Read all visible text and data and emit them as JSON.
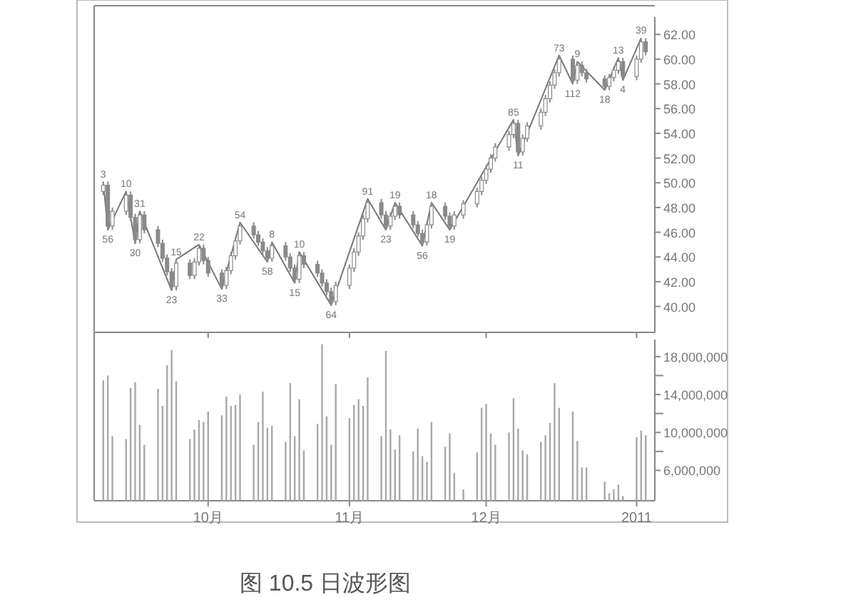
{
  "chart_data": [
    {
      "type": "candlestick",
      "color": "#8a8a8a",
      "tick_labels": "y",
      "x": [
        "2010-09-08",
        "2010-09-09",
        "2010-09-10",
        "2010-09-13",
        "2010-09-14",
        "2010-09-15",
        "2010-09-16",
        "2010-09-17",
        "2010-09-20",
        "2010-09-21",
        "2010-09-22",
        "2010-09-23",
        "2010-09-24",
        "2010-09-27",
        "2010-09-28",
        "2010-09-29",
        "2010-09-30",
        "2010-10-01",
        "2010-10-04",
        "2010-10-05",
        "2010-10-06",
        "2010-10-07",
        "2010-10-08",
        "2010-10-11",
        "2010-10-12",
        "2010-10-13",
        "2010-10-14",
        "2010-10-15",
        "2010-10-18",
        "2010-10-19",
        "2010-10-20",
        "2010-10-21",
        "2010-10-22",
        "2010-10-25",
        "2010-10-26",
        "2010-10-27",
        "2010-10-28",
        "2010-10-29",
        "2010-11-01",
        "2010-11-02",
        "2010-11-03",
        "2010-11-04",
        "2010-11-05",
        "2010-11-08",
        "2010-11-09",
        "2010-11-10",
        "2010-11-11",
        "2010-11-12",
        "2010-11-15",
        "2010-11-16",
        "2010-11-17",
        "2010-11-18",
        "2010-11-19",
        "2010-11-22",
        "2010-11-23",
        "2010-11-24",
        "2010-11-26",
        "2010-11-29",
        "2010-11-30",
        "2010-12-01",
        "2010-12-02",
        "2010-12-03",
        "2010-12-06",
        "2010-12-07",
        "2010-12-08",
        "2010-12-09",
        "2010-12-10",
        "2010-12-13",
        "2010-12-14",
        "2010-12-15",
        "2010-12-16",
        "2010-12-17",
        "2010-12-20",
        "2010-12-21",
        "2010-12-22",
        "2010-12-23",
        "2010-12-27",
        "2010-12-28",
        "2010-12-29",
        "2010-12-30",
        "2010-12-31",
        "2011-01-03",
        "2011-01-04",
        "2011-01-05"
      ],
      "ohlc": [
        [
          49.3,
          50.1,
          49.0,
          49.8
        ],
        [
          49.8,
          50.1,
          46.2,
          46.5
        ],
        [
          46.5,
          48.0,
          46.2,
          47.7
        ],
        [
          47.7,
          49.3,
          47.4,
          49.0
        ],
        [
          49.0,
          49.3,
          46.9,
          47.2
        ],
        [
          47.2,
          47.5,
          45.1,
          45.4
        ],
        [
          45.4,
          47.7,
          45.1,
          47.4
        ],
        [
          47.4,
          47.7,
          45.9,
          46.2
        ],
        [
          46.2,
          46.5,
          44.8,
          45.1
        ],
        [
          45.1,
          45.4,
          43.6,
          43.9
        ],
        [
          43.9,
          44.2,
          42.5,
          42.8
        ],
        [
          42.8,
          43.1,
          41.3,
          41.6
        ],
        [
          41.6,
          43.8,
          41.3,
          43.5
        ],
        [
          43.5,
          43.8,
          42.2,
          42.5
        ],
        [
          42.5,
          43.9,
          42.2,
          43.6
        ],
        [
          43.6,
          45.0,
          43.3,
          44.7
        ],
        [
          44.7,
          45.0,
          43.4,
          43.7
        ],
        [
          43.7,
          44.0,
          42.4,
          42.7
        ],
        [
          42.7,
          43.0,
          41.4,
          41.7
        ],
        [
          41.7,
          43.2,
          41.4,
          42.9
        ],
        [
          42.9,
          44.4,
          42.6,
          44.1
        ],
        [
          44.1,
          45.6,
          43.8,
          45.3
        ],
        [
          45.3,
          46.8,
          45.0,
          46.5
        ],
        [
          46.5,
          46.8,
          45.5,
          45.8
        ],
        [
          45.8,
          46.1,
          44.9,
          45.2
        ],
        [
          45.2,
          45.5,
          44.2,
          44.5
        ],
        [
          44.5,
          44.8,
          43.6,
          43.9
        ],
        [
          43.9,
          45.2,
          43.6,
          44.9
        ],
        [
          44.9,
          45.2,
          43.7,
          44.0
        ],
        [
          44.0,
          44.3,
          42.8,
          43.1
        ],
        [
          43.1,
          43.4,
          41.9,
          42.2
        ],
        [
          42.2,
          44.4,
          41.9,
          44.1
        ],
        [
          44.1,
          44.4,
          43.1,
          43.4
        ],
        [
          43.4,
          43.7,
          42.4,
          42.7
        ],
        [
          42.7,
          43.0,
          41.6,
          41.9
        ],
        [
          41.9,
          42.2,
          40.9,
          41.2
        ],
        [
          41.2,
          41.5,
          40.1,
          40.4
        ],
        [
          40.4,
          42.0,
          40.1,
          41.7
        ],
        [
          41.7,
          43.4,
          41.4,
          43.1
        ],
        [
          43.1,
          44.7,
          42.8,
          44.4
        ],
        [
          44.4,
          46.0,
          44.1,
          45.7
        ],
        [
          45.7,
          47.4,
          45.4,
          47.1
        ],
        [
          47.1,
          48.7,
          46.8,
          48.4
        ],
        [
          48.4,
          48.7,
          47.1,
          47.4
        ],
        [
          47.4,
          47.7,
          46.2,
          46.5
        ],
        [
          46.5,
          47.6,
          46.2,
          47.3
        ],
        [
          47.3,
          48.4,
          47.0,
          48.1
        ],
        [
          48.1,
          48.4,
          47.1,
          47.4
        ],
        [
          47.4,
          47.7,
          46.3,
          46.6
        ],
        [
          46.6,
          46.9,
          45.6,
          45.9
        ],
        [
          45.9,
          46.2,
          44.9,
          45.2
        ],
        [
          45.2,
          46.9,
          44.9,
          46.6
        ],
        [
          46.6,
          48.4,
          46.3,
          48.1
        ],
        [
          48.1,
          48.4,
          47.0,
          47.3
        ],
        [
          47.3,
          47.6,
          46.2,
          46.5
        ],
        [
          46.5,
          47.7,
          46.2,
          47.4
        ],
        [
          47.4,
          48.6,
          47.1,
          48.3
        ],
        [
          48.3,
          49.6,
          48.0,
          49.3
        ],
        [
          49.3,
          50.5,
          49.0,
          50.2
        ],
        [
          50.2,
          51.4,
          49.9,
          51.1
        ],
        [
          51.1,
          52.3,
          50.8,
          52.0
        ],
        [
          52.0,
          53.2,
          51.7,
          52.9
        ],
        [
          52.9,
          54.2,
          52.6,
          53.9
        ],
        [
          53.9,
          55.1,
          53.6,
          54.8
        ],
        [
          54.8,
          55.1,
          52.2,
          52.5
        ],
        [
          52.5,
          53.9,
          52.2,
          53.6
        ],
        [
          53.6,
          54.9,
          53.3,
          54.6
        ],
        [
          54.6,
          56.0,
          54.3,
          55.7
        ],
        [
          55.7,
          57.1,
          55.4,
          56.8
        ],
        [
          56.8,
          58.2,
          56.5,
          57.9
        ],
        [
          57.9,
          59.2,
          57.6,
          58.9
        ],
        [
          58.9,
          60.3,
          58.6,
          60.0
        ],
        [
          60.0,
          60.3,
          58.0,
          58.3
        ],
        [
          58.3,
          59.8,
          58.0,
          59.5
        ],
        [
          59.5,
          59.8,
          58.6,
          58.9
        ],
        [
          58.9,
          59.2,
          58.1,
          58.4
        ],
        [
          58.4,
          58.7,
          57.5,
          57.8
        ],
        [
          57.8,
          58.8,
          57.5,
          58.5
        ],
        [
          58.5,
          59.4,
          58.2,
          59.1
        ],
        [
          59.1,
          60.1,
          58.8,
          59.8
        ],
        [
          59.8,
          60.1,
          58.3,
          58.6
        ],
        [
          58.6,
          60.3,
          58.3,
          60.0
        ],
        [
          60.0,
          61.7,
          59.7,
          61.4
        ],
        [
          61.4,
          61.7,
          60.3,
          60.6
        ]
      ],
      "series": [
        {
          "type": "line",
          "color": "#777777",
          "x": [
            "2010-09-08",
            "2010-09-09",
            "2010-09-13",
            "2010-09-15",
            "2010-09-16",
            "2010-09-23",
            "2010-09-24",
            "2010-09-29",
            "2010-10-04",
            "2010-10-08",
            "2010-10-14",
            "2010-10-15",
            "2010-10-20",
            "2010-10-21",
            "2010-10-28",
            "2010-11-05",
            "2010-11-09",
            "2010-11-11",
            "2010-11-17",
            "2010-11-19",
            "2010-11-23",
            "2010-12-07",
            "2010-12-08",
            "2010-12-17",
            "2010-12-20",
            "2010-12-21",
            "2010-12-27",
            "2010-12-30",
            "2010-12-31",
            "2011-01-04"
          ],
          "values": [
            50.1,
            46.2,
            49.3,
            45.1,
            47.7,
            41.3,
            43.8,
            45.0,
            41.4,
            46.8,
            43.6,
            45.2,
            41.9,
            44.4,
            40.1,
            48.7,
            46.2,
            48.4,
            44.9,
            48.4,
            46.2,
            55.1,
            52.2,
            60.3,
            58.0,
            59.8,
            57.5,
            60.1,
            58.3,
            61.7
          ]
        }
      ],
      "annotations": [
        {
          "text": "3",
          "x": "2010-09-08",
          "y": 50.1
        },
        {
          "text": "56",
          "x": "2010-09-09",
          "y": 46.2
        },
        {
          "text": "10",
          "x": "2010-09-13",
          "y": 49.3
        },
        {
          "text": "30",
          "x": "2010-09-15",
          "y": 45.1
        },
        {
          "text": "31",
          "x": "2010-09-16",
          "y": 47.7
        },
        {
          "text": "23",
          "x": "2010-09-23",
          "y": 41.3
        },
        {
          "text": "15",
          "x": "2010-09-24",
          "y": 43.8
        },
        {
          "text": "22",
          "x": "2010-09-29",
          "y": 45.0
        },
        {
          "text": "33",
          "x": "2010-10-04",
          "y": 41.4
        },
        {
          "text": "54",
          "x": "2010-10-08",
          "y": 46.8
        },
        {
          "text": "58",
          "x": "2010-10-14",
          "y": 43.6
        },
        {
          "text": "8",
          "x": "2010-10-15",
          "y": 45.2
        },
        {
          "text": "15",
          "x": "2010-10-20",
          "y": 41.9
        },
        {
          "text": "10",
          "x": "2010-10-21",
          "y": 44.4
        },
        {
          "text": "64",
          "x": "2010-10-28",
          "y": 40.1
        },
        {
          "text": "91",
          "x": "2010-11-05",
          "y": 48.7
        },
        {
          "text": "23",
          "x": "2010-11-09",
          "y": 46.2
        },
        {
          "text": "19",
          "x": "2010-11-11",
          "y": 48.4
        },
        {
          "text": "56",
          "x": "2010-11-17",
          "y": 44.9
        },
        {
          "text": "18",
          "x": "2010-11-19",
          "y": 48.4
        },
        {
          "text": "19",
          "x": "2010-11-23",
          "y": 46.2
        },
        {
          "text": "85",
          "x": "2010-12-07",
          "y": 55.1
        },
        {
          "text": "11",
          "x": "2010-12-08",
          "y": 52.2
        },
        {
          "text": "73",
          "x": "2010-12-17",
          "y": 60.3
        },
        {
          "text": "112",
          "x": "2010-12-20",
          "y": 58.0
        },
        {
          "text": "9",
          "x": "2010-12-21",
          "y": 59.8
        },
        {
          "text": "18",
          "x": "2010-12-27",
          "y": 57.5
        },
        {
          "text": "13",
          "x": "2010-12-30",
          "y": 60.1
        },
        {
          "text": "4",
          "x": "2010-12-31",
          "y": 58.3
        },
        {
          "text": "39",
          "x": "2011-01-04",
          "y": 61.7
        }
      ],
      "xticks": [
        {
          "value": "2010-10-01",
          "label": null
        },
        {
          "value": "2010-11-01",
          "label": null
        },
        {
          "value": "2010-12-01",
          "label": null
        },
        {
          "value": "2011-01-03",
          "label": null
        }
      ],
      "xlim": [
        "2010-09-06",
        "2011-01-07"
      ],
      "ylim": [
        37.9,
        63.4
      ],
      "yticks": [
        {
          "value": 40,
          "label": "40.00"
        },
        {
          "value": 42,
          "label": "42.00"
        },
        {
          "value": 44,
          "label": "44.00"
        },
        {
          "value": 46,
          "label": "46.00"
        },
        {
          "value": 48,
          "label": "48.00"
        },
        {
          "value": 50,
          "label": "50.00"
        },
        {
          "value": 52,
          "label": "52.00"
        },
        {
          "value": 54,
          "label": "54.00"
        },
        {
          "value": 56,
          "label": "56.00"
        },
        {
          "value": 58,
          "label": "58.00"
        },
        {
          "value": 60,
          "label": "60.00"
        },
        {
          "value": 62,
          "label": "62.00"
        }
      ]
    },
    {
      "type": "bar",
      "color": "#a8a8a8",
      "x": [
        "2010-09-08",
        "2010-09-09",
        "2010-09-10",
        "2010-09-13",
        "2010-09-14",
        "2010-09-15",
        "2010-09-16",
        "2010-09-17",
        "2010-09-20",
        "2010-09-21",
        "2010-09-22",
        "2010-09-23",
        "2010-09-24",
        "2010-09-27",
        "2010-09-28",
        "2010-09-29",
        "2010-09-30",
        "2010-10-01",
        "2010-10-04",
        "2010-10-05",
        "2010-10-06",
        "2010-10-07",
        "2010-10-08",
        "2010-10-11",
        "2010-10-12",
        "2010-10-13",
        "2010-10-14",
        "2010-10-15",
        "2010-10-18",
        "2010-10-19",
        "2010-10-20",
        "2010-10-21",
        "2010-10-22",
        "2010-10-25",
        "2010-10-26",
        "2010-10-27",
        "2010-10-28",
        "2010-10-29",
        "2010-11-01",
        "2010-11-02",
        "2010-11-03",
        "2010-11-04",
        "2010-11-05",
        "2010-11-08",
        "2010-11-09",
        "2010-11-10",
        "2010-11-11",
        "2010-11-12",
        "2010-11-15",
        "2010-11-16",
        "2010-11-17",
        "2010-11-18",
        "2010-11-19",
        "2010-11-22",
        "2010-11-23",
        "2010-11-24",
        "2010-11-26",
        "2010-11-29",
        "2010-11-30",
        "2010-12-01",
        "2010-12-02",
        "2010-12-03",
        "2010-12-06",
        "2010-12-07",
        "2010-12-08",
        "2010-12-09",
        "2010-12-10",
        "2010-12-13",
        "2010-12-14",
        "2010-12-15",
        "2010-12-16",
        "2010-12-17",
        "2010-12-20",
        "2010-12-21",
        "2010-12-22",
        "2010-12-23",
        "2010-12-27",
        "2010-12-28",
        "2010-12-29",
        "2010-12-30",
        "2010-12-31",
        "2011-01-03",
        "2011-01-04",
        "2011-01-05"
      ],
      "values": [
        15500000,
        16000000,
        9600000,
        9300000,
        14700000,
        15300000,
        10800000,
        8700000,
        14600000,
        12800000,
        17100000,
        18700000,
        15400000,
        9300000,
        10300000,
        11300000,
        11100000,
        12200000,
        11800000,
        13800000,
        12800000,
        12900000,
        14000000,
        8700000,
        11100000,
        14300000,
        10500000,
        10700000,
        9000000,
        15200000,
        9600000,
        13500000,
        8100000,
        10900000,
        19300000,
        11700000,
        8700000,
        15100000,
        11500000,
        12900000,
        13500000,
        12800000,
        15800000,
        9600000,
        18600000,
        10300000,
        8200000,
        9700000,
        8000000,
        10400000,
        7500000,
        6900000,
        11100000,
        8500000,
        9900000,
        5700000,
        4000000,
        7900000,
        12600000,
        13000000,
        9900000,
        8700000,
        10000000,
        13600000,
        10400000,
        8100000,
        7700000,
        9000000,
        9700000,
        11000000,
        15200000,
        12600000,
        12200000,
        9100000,
        6300000,
        6300000,
        4800000,
        3600000,
        4000000,
        4500000,
        3300000,
        9500000,
        10200000,
        9700000
      ],
      "xticks": [
        {
          "value": "2010-10-01",
          "label": "10月"
        },
        {
          "value": "2010-11-01",
          "label": "11月"
        },
        {
          "value": "2010-12-01",
          "label": "12月"
        },
        {
          "value": "2011-01-03",
          "label": "2011"
        }
      ],
      "xlim": [
        "2010-09-06",
        "2011-01-07"
      ],
      "ylim": [
        2800000,
        19800000
      ],
      "yticks": [
        {
          "value": 6000000,
          "label": "6,000,000"
        },
        {
          "value": 8000000,
          "label": null
        },
        {
          "value": 10000000,
          "label": "10,000,000"
        },
        {
          "value": 12000000,
          "label": null
        },
        {
          "value": 14000000,
          "label": "14,000,000"
        },
        {
          "value": 16000000,
          "label": null
        },
        {
          "value": 18000000,
          "label": "18,000,000"
        }
      ],
      "annotations": [
        "图 10.5 日波形图"
      ]
    }
  ]
}
